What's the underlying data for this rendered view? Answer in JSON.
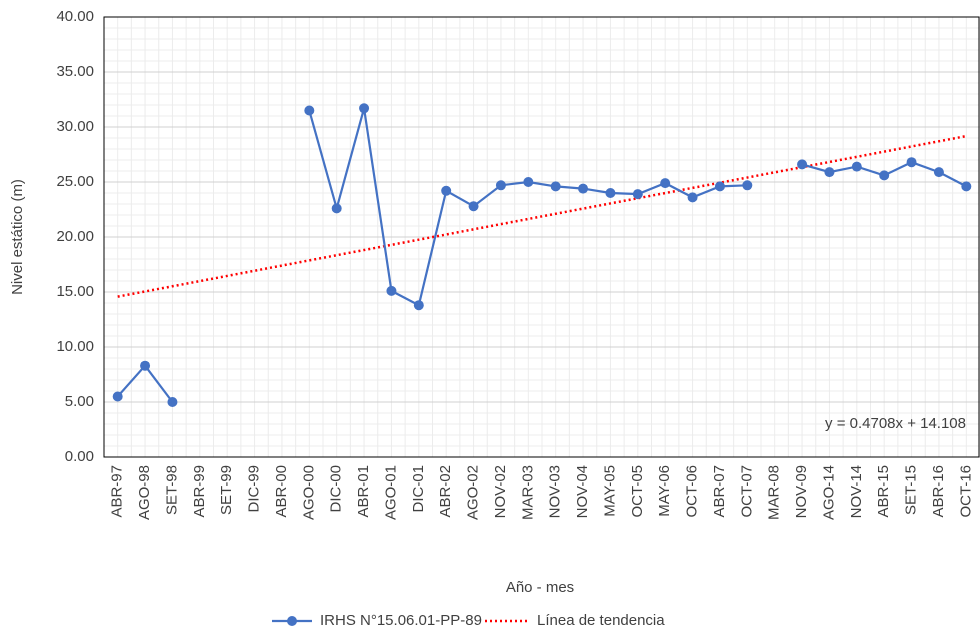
{
  "chart_data": {
    "type": "line",
    "x_label": "Año - mes",
    "y_label": "Nivel estático (m)",
    "categories": [
      "ABR-97",
      "AGO-98",
      "SET-98",
      "ABR-99",
      "SET-99",
      "DIC-99",
      "ABR-00",
      "AGO-00",
      "DIC-00",
      "ABR-01",
      "AGO-01",
      "DIC-01",
      "ABR-02",
      "AGO-02",
      "NOV-02",
      "MAR-03",
      "NOV-03",
      "NOV-04",
      "MAY-05",
      "OCT-05",
      "MAY-06",
      "OCT-06",
      "ABR-07",
      "OCT-07",
      "MAR-08",
      "NOV-09",
      "AGO-14",
      "NOV-14",
      "ABR-15",
      "SET-15",
      "ABR-16",
      "OCT-16"
    ],
    "series": [
      {
        "name": "IRHS N°15.06.01-PP-89",
        "color": "#4472c4",
        "values": [
          5.5,
          8.3,
          5.0,
          null,
          null,
          null,
          null,
          31.5,
          22.6,
          31.7,
          15.1,
          13.8,
          24.2,
          22.8,
          24.7,
          25.0,
          24.6,
          24.4,
          24.0,
          23.9,
          24.9,
          23.6,
          24.6,
          24.7,
          null,
          26.6,
          25.9,
          26.4,
          25.6,
          26.8,
          25.9,
          24.6
        ]
      }
    ],
    "trendline": {
      "name": "Línea de tendencia",
      "color": "#ff0000",
      "slope": 0.4708,
      "intercept": 14.108,
      "label": "y = 0.4708x + 14.108"
    },
    "ylim": [
      0,
      40
    ],
    "yticks": [
      {
        "value": 0,
        "label": "0.00"
      },
      {
        "value": 5,
        "label": "5.00"
      },
      {
        "value": 10,
        "label": "10.00"
      },
      {
        "value": 15,
        "label": "15.00"
      },
      {
        "value": 20,
        "label": "20.00"
      },
      {
        "value": 25,
        "label": "25.00"
      },
      {
        "value": 30,
        "label": "30.00"
      },
      {
        "value": 35,
        "label": "35.00"
      },
      {
        "value": 40,
        "label": "40.00"
      }
    ],
    "grid": true
  }
}
